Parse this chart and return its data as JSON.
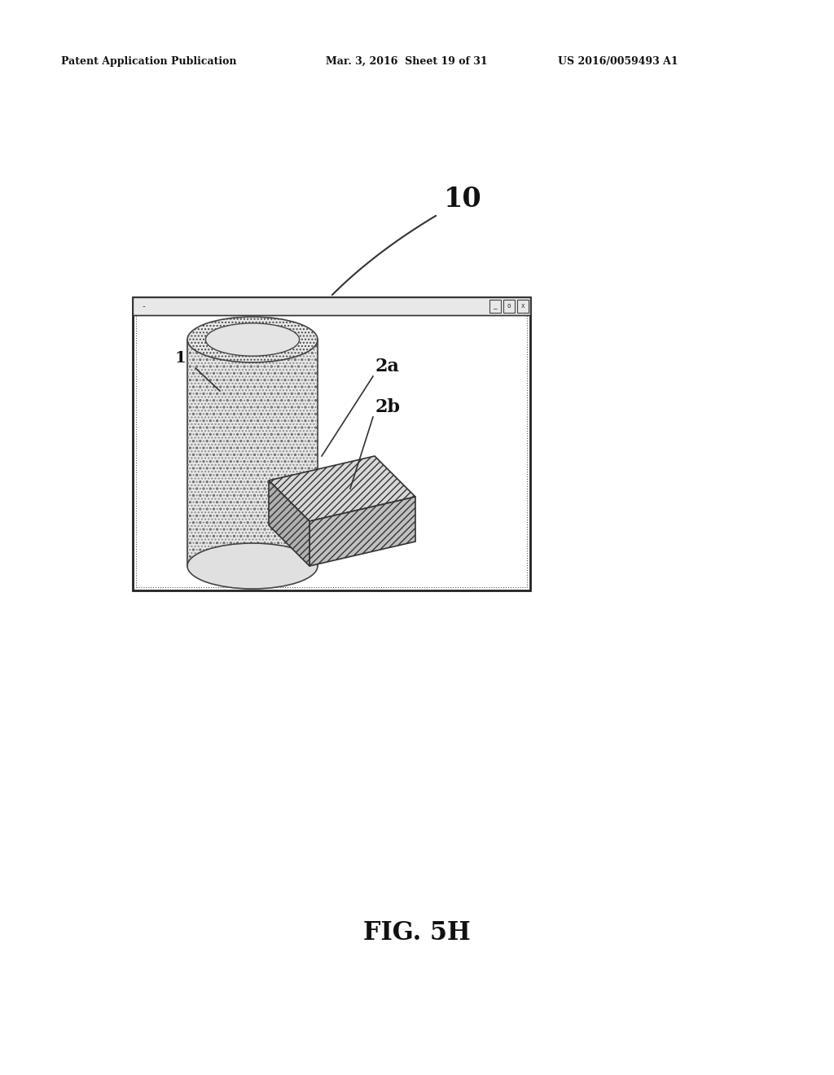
{
  "bg_color": "#ffffff",
  "header_text_left": "Patent Application Publication",
  "header_text_mid": "Mar. 3, 2016  Sheet 19 of 31",
  "header_text_right": "US 2016/0059493 A1",
  "caption": "FIG. 5H",
  "label_10": "10",
  "label_1": "1",
  "label_2a": "2a",
  "label_2b": "2b",
  "line_color": "#333333",
  "fill_color_white": "#ffffff",
  "fill_color_light": "#e8e8e8",
  "fill_color_mid": "#d0d0d0",
  "fill_color_dark": "#b0b0b0"
}
